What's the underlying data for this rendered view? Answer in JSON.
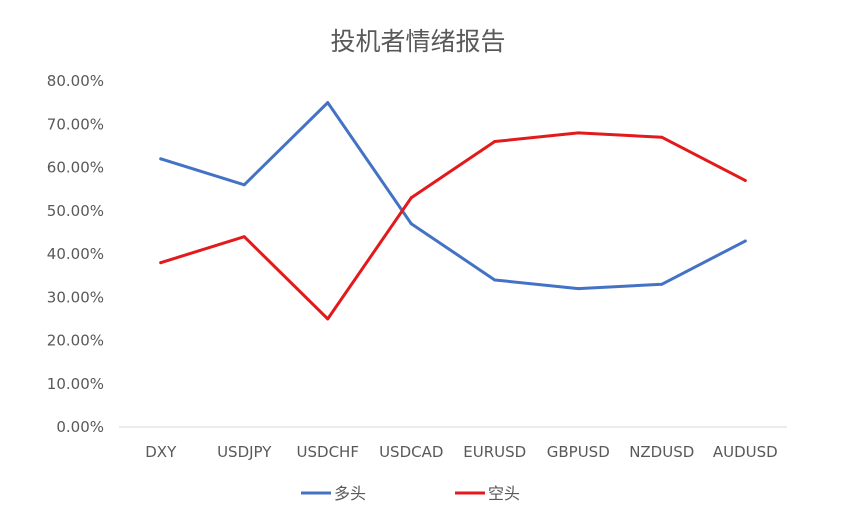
{
  "chart_data": {
    "type": "line",
    "title": "投机者情绪报告",
    "xlabel": "",
    "ylabel": "",
    "categories": [
      "DXY",
      "USDJPY",
      "USDCHF",
      "USDCAD",
      "EURUSD",
      "GBPUSD",
      "NZDUSD",
      "AUDUSD"
    ],
    "ylim": [
      0,
      80
    ],
    "yticks": [
      "0.00%",
      "10.00%",
      "20.00%",
      "30.00%",
      "40.00%",
      "50.00%",
      "60.00%",
      "70.00%",
      "80.00%"
    ],
    "grid": false,
    "legend_position": "bottom",
    "series": [
      {
        "name": "多头",
        "color": "#4472C4",
        "values": [
          62,
          56,
          75,
          47,
          34,
          32,
          33,
          43
        ]
      },
      {
        "name": "空头",
        "color": "#E31A1C",
        "values": [
          38,
          44,
          25,
          53,
          66,
          68,
          67,
          57
        ]
      }
    ]
  }
}
